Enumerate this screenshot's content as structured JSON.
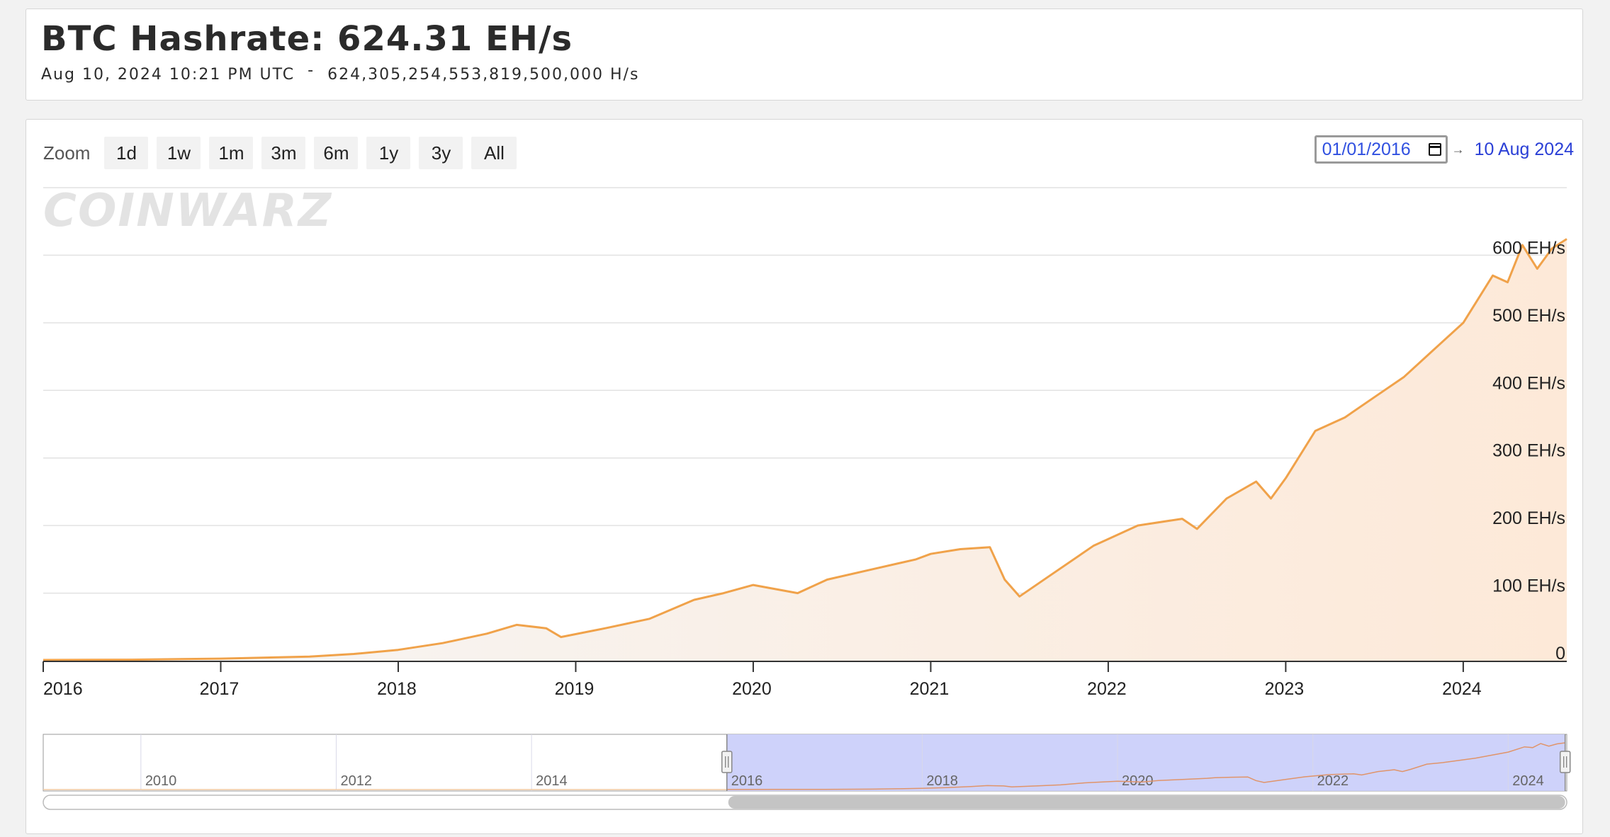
{
  "header": {
    "title": "BTC Hashrate: 624.31 EH/s",
    "timestamp": "Aug 10, 2024 10:21 PM UTC",
    "separator": "-",
    "raw_hashrate": "624,305,254,553,819,500,000 H/s"
  },
  "toolbar": {
    "zoom_label": "Zoom",
    "zoom_buttons": [
      "1d",
      "1w",
      "1m",
      "3m",
      "6m",
      "1y",
      "3y",
      "All"
    ],
    "date_from": "01/01/2016",
    "range_arrow": "→",
    "date_to": "10 Aug 2024"
  },
  "watermark": "COINWARZ",
  "navigator": {
    "tick_labels": [
      "2010",
      "2012",
      "2014",
      "2016",
      "2018",
      "2020",
      "2022",
      "2024"
    ]
  },
  "colors": {
    "line": "#f0a24a",
    "navigator_selection": "#c9cdfa",
    "accent_link": "#2a3fd6"
  },
  "chart_data": {
    "type": "area",
    "title": "",
    "xlabel": "",
    "ylabel": "",
    "series": [
      {
        "x": [
          "2016-01",
          "2016-07",
          "2017-01",
          "2017-07",
          "2017-10",
          "2018-01",
          "2018-04",
          "2018-07",
          "2018-09",
          "2018-11",
          "2018-12",
          "2019-03",
          "2019-06",
          "2019-09",
          "2019-11",
          "2020-01",
          "2020-04",
          "2020-06",
          "2020-09",
          "2020-12",
          "2021-01",
          "2021-03",
          "2021-05",
          "2021-06",
          "2021-07",
          "2021-09",
          "2021-12",
          "2022-03",
          "2022-06",
          "2022-07",
          "2022-09",
          "2022-11",
          "2022-12",
          "2023-01",
          "2023-03",
          "2023-05",
          "2023-07",
          "2023-09",
          "2023-11",
          "2024-01",
          "2024-03",
          "2024-04",
          "2024-05",
          "2024-06",
          "2024-07",
          "2024-08"
        ],
        "values": [
          1,
          1.5,
          3,
          6,
          10,
          16,
          26,
          40,
          53,
          48,
          35,
          48,
          62,
          90,
          100,
          112,
          100,
          120,
          135,
          150,
          158,
          165,
          168,
          120,
          95,
          125,
          170,
          200,
          210,
          195,
          240,
          265,
          240,
          270,
          340,
          360,
          390,
          420,
          460,
          500,
          570,
          560,
          615,
          580,
          610,
          624
        ]
      }
    ],
    "y_ticks": [
      "0",
      "100 EH/s",
      "200 EH/s",
      "300 EH/s",
      "400 EH/s",
      "500 EH/s",
      "600 EH/s"
    ],
    "y_tick_values": [
      0,
      100,
      200,
      300,
      400,
      500,
      600
    ],
    "x_ticks": [
      "2016",
      "2017",
      "2018",
      "2019",
      "2020",
      "2021",
      "2022",
      "2023",
      "2024"
    ],
    "ylim": [
      0,
      700
    ],
    "xlim": [
      "2016-01",
      "2024-08"
    ],
    "grid": true,
    "legend": "none"
  }
}
